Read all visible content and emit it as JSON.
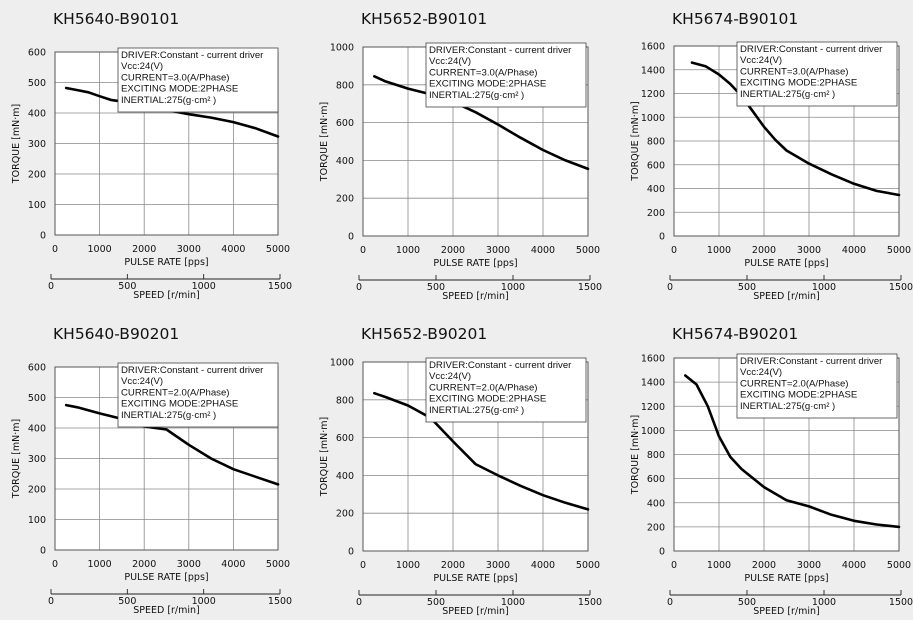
{
  "chart_data": [
    {
      "type": "line",
      "title": "KH5640-B90101",
      "xlabel": "PULSE RATE [pps]",
      "ylabel": "TORQUE [mN·m]",
      "x2label": "SPEED [r/min]",
      "xlim": [
        0,
        5000
      ],
      "ylim": [
        0,
        600
      ],
      "xticks": [
        "0",
        "1000",
        "2000",
        "3000",
        "4000",
        "5000"
      ],
      "yticks": [
        "0",
        "100",
        "200",
        "300",
        "400",
        "500",
        "600"
      ],
      "x2ticks": [
        "0",
        "500",
        "1000",
        "1500"
      ],
      "grid": true,
      "annotation": [
        "DRIVER:Constant - current driver",
        "Vcc:24(V)",
        "CURRENT=3.0(A/Phase)",
        "EXCITING MODE:2PHASE",
        "INERTIAL:275(g·cm²  )"
      ],
      "series": [
        {
          "x": [
            250,
            500,
            750,
            1000,
            1250,
            1500,
            2000,
            2500,
            3000,
            3500,
            4000,
            4500,
            5000
          ],
          "y": [
            482,
            475,
            468,
            455,
            443,
            438,
            425,
            410,
            396,
            385,
            370,
            350,
            323
          ]
        }
      ]
    },
    {
      "type": "line",
      "title": "KH5652-B90101",
      "xlabel": "PULSE RATE [pps]",
      "ylabel": "TORQUE [mN·m]",
      "x2label": "SPEED [r/min]",
      "xlim": [
        0,
        5000
      ],
      "ylim": [
        0,
        1000
      ],
      "xticks": [
        "0",
        "1000",
        "2000",
        "3000",
        "4000",
        "5000"
      ],
      "yticks": [
        "0",
        "200",
        "400",
        "600",
        "800",
        "1000"
      ],
      "x2ticks": [
        "0",
        "500",
        "1000",
        "1500"
      ],
      "grid": true,
      "annotation": [
        "DRIVER:Constant - current driver",
        "Vcc:24(V)",
        "CURRENT=3.0(A/Phase)",
        "EXCITING MODE:2PHASE",
        "INERTIAL:275(g·cm²  )"
      ],
      "series": [
        {
          "x": [
            250,
            500,
            1000,
            1500,
            2000,
            2500,
            3000,
            3500,
            4000,
            4500,
            5000
          ],
          "y": [
            845,
            818,
            780,
            750,
            710,
            655,
            590,
            520,
            455,
            400,
            355
          ]
        }
      ]
    },
    {
      "type": "line",
      "title": "KH5674-B90101",
      "xlabel": "PULSE RATE [pps]",
      "ylabel": "TORQUE [mN·m]",
      "x2label": "SPEED [r/min]",
      "xlim": [
        0,
        5000
      ],
      "ylim": [
        0,
        1600
      ],
      "xticks": [
        "0",
        "1000",
        "2000",
        "3000",
        "4000",
        "5000"
      ],
      "yticks": [
        "0",
        "200",
        "400",
        "600",
        "800",
        "1000",
        "1200",
        "1400",
        "1600"
      ],
      "x2ticks": [
        "0",
        "500",
        "1000",
        "1500"
      ],
      "grid": true,
      "annotation": [
        "DRIVER:Constant - current driver",
        "Vcc:24(V)",
        "CURRENT=3.0(A/Phase)",
        "EXCITING MODE:2PHASE",
        "INERTIAL:275(g·cm²  )"
      ],
      "series": [
        {
          "x": [
            400,
            700,
            1000,
            1250,
            1500,
            1750,
            2000,
            2250,
            2500,
            3000,
            3500,
            4000,
            4500,
            5000
          ],
          "y": [
            1460,
            1430,
            1360,
            1280,
            1180,
            1050,
            920,
            810,
            720,
            610,
            520,
            440,
            380,
            345
          ]
        }
      ]
    },
    {
      "type": "line",
      "title": "KH5640-B90201",
      "xlabel": "PULSE RATE [pps]",
      "ylabel": "TORQUE [mN·m]",
      "x2label": "SPEED [r/min]",
      "xlim": [
        0,
        5000
      ],
      "ylim": [
        0,
        600
      ],
      "xticks": [
        "0",
        "1000",
        "2000",
        "3000",
        "4000",
        "5000"
      ],
      "yticks": [
        "0",
        "100",
        "200",
        "300",
        "400",
        "500",
        "600"
      ],
      "x2ticks": [
        "0",
        "500",
        "1000",
        "1500"
      ],
      "grid": true,
      "annotation": [
        "DRIVER:Constant - current driver",
        "Vcc:24(V)",
        "CURRENT=2.0(A/Phase)",
        "EXCITING MODE:2PHASE",
        "INERTIAL:275(g·cm²  )"
      ],
      "series": [
        {
          "x": [
            250,
            500,
            1000,
            1500,
            2000,
            2500,
            3000,
            3500,
            4000,
            4500,
            5000
          ],
          "y": [
            475,
            468,
            448,
            430,
            405,
            395,
            345,
            300,
            265,
            240,
            215
          ]
        }
      ]
    },
    {
      "type": "line",
      "title": "KH5652-B90201",
      "xlabel": "PULSE RATE [pps]",
      "ylabel": "TORQUE [mN·m]",
      "x2label": "SPEED [r/min]",
      "xlim": [
        0,
        5000
      ],
      "ylim": [
        0,
        1000
      ],
      "xticks": [
        "0",
        "1000",
        "2000",
        "3000",
        "4000",
        "5000"
      ],
      "yticks": [
        "0",
        "200",
        "400",
        "600",
        "800",
        "1000"
      ],
      "x2ticks": [
        "0",
        "500",
        "1000",
        "1500"
      ],
      "grid": true,
      "annotation": [
        "DRIVER:Constant - current driver",
        "Vcc:24(V)",
        "CURRENT=2.0(A/Phase)",
        "EXCITING MODE:2PHASE",
        "INERTIAL:275(g·cm²  )"
      ],
      "series": [
        {
          "x": [
            250,
            500,
            1000,
            1500,
            2000,
            2500,
            3000,
            3500,
            4000,
            4500,
            5000
          ],
          "y": [
            835,
            815,
            770,
            705,
            580,
            460,
            400,
            345,
            295,
            255,
            220
          ]
        }
      ]
    },
    {
      "type": "line",
      "title": "KH5674-B90201",
      "xlabel": "PULSE RATE [pps]",
      "ylabel": "TORQUE [mN·m]",
      "x2label": "SPEED [r/min]",
      "xlim": [
        0,
        5000
      ],
      "ylim": [
        0,
        1600
      ],
      "xticks": [
        "0",
        "1000",
        "2000",
        "3000",
        "4000",
        "5000"
      ],
      "yticks": [
        "0",
        "200",
        "400",
        "600",
        "800",
        "1000",
        "1200",
        "1400",
        "1600"
      ],
      "x2ticks": [
        "0",
        "500",
        "1000",
        "1500"
      ],
      "grid": true,
      "annotation": [
        "DRIVER:Constant - current driver",
        "Vcc:24(V)",
        "CURRENT=2.0(A/Phase)",
        "EXCITING MODE:2PHASE",
        "INERTIAL:275(g·cm²  )"
      ],
      "series": [
        {
          "x": [
            250,
            500,
            750,
            1000,
            1250,
            1500,
            2000,
            2500,
            3000,
            3500,
            4000,
            4500,
            5000
          ],
          "y": [
            1455,
            1380,
            1200,
            950,
            780,
            680,
            530,
            420,
            370,
            300,
            250,
            220,
            200
          ]
        }
      ]
    }
  ]
}
